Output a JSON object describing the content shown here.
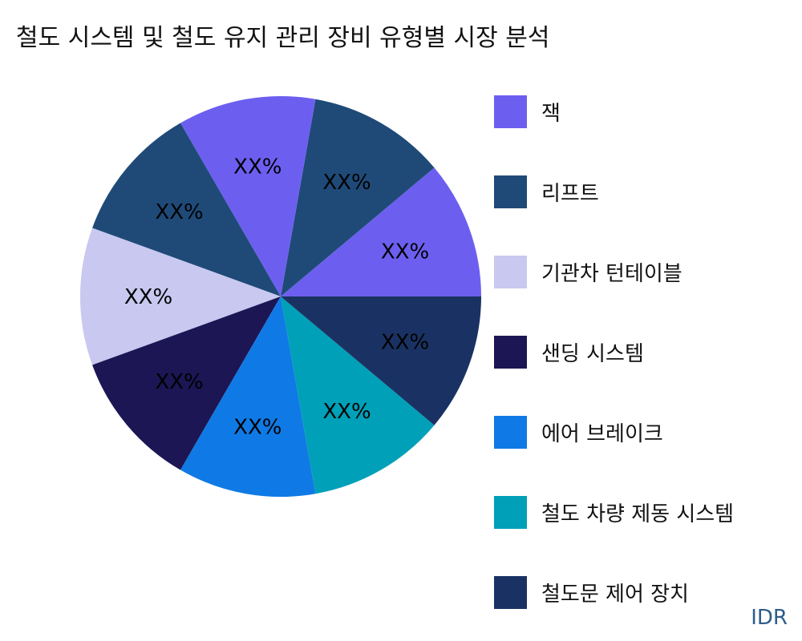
{
  "title": "철도 시스템 및 철도 유지 관리 장비 유형별 시장 분석",
  "watermark": "IDR",
  "chart_data": {
    "type": "pie",
    "title": "철도 시스템 및 철도 유지 관리 장비 유형별 시장 분석",
    "slices": [
      {
        "label": "XX%",
        "value": 1,
        "color": "#6c5ff0"
      },
      {
        "label": "XX%",
        "value": 1,
        "color": "#1f4a78"
      },
      {
        "label": "XX%",
        "value": 1,
        "color": "#6c5ff0"
      },
      {
        "label": "XX%",
        "value": 1,
        "color": "#1f4a78"
      },
      {
        "label": "XX%",
        "value": 1,
        "color": "#c8c8f0"
      },
      {
        "label": "XX%",
        "value": 1,
        "color": "#1c1654"
      },
      {
        "label": "XX%",
        "value": 1,
        "color": "#0f7ae5"
      },
      {
        "label": "XX%",
        "value": 1,
        "color": "#00a0b8"
      },
      {
        "label": "XX%",
        "value": 1,
        "color": "#1a3263"
      }
    ],
    "legend": [
      {
        "label": "잭",
        "color": "#6c5ff0"
      },
      {
        "label": "리프트",
        "color": "#1f4a78"
      },
      {
        "label": "기관차 턴테이블",
        "color": "#c8c8f0"
      },
      {
        "label": "샌딩 시스템",
        "color": "#1c1654"
      },
      {
        "label": "에어 브레이크",
        "color": "#0f7ae5"
      },
      {
        "label": "철도 차량 제동 시스템",
        "color": "#00a0b8"
      },
      {
        "label": "철도문 제어 장치",
        "color": "#1a3263"
      }
    ],
    "legend_position": "right"
  }
}
